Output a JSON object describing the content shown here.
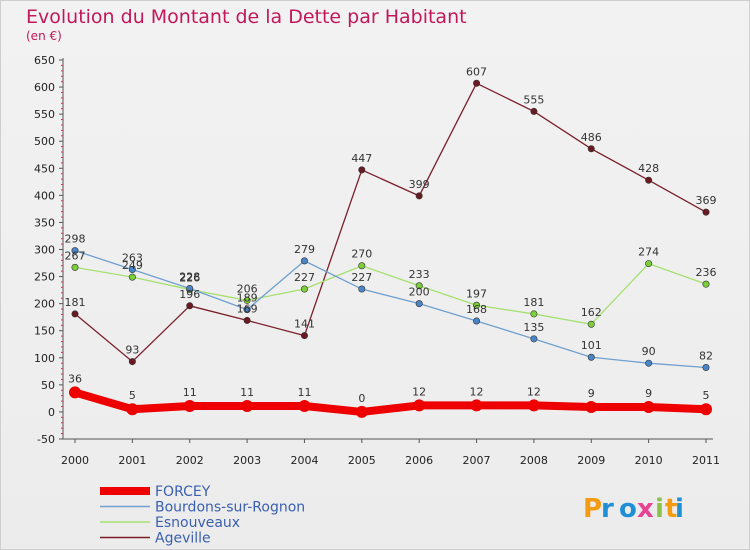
{
  "title": "Evolution du Montant de la Dette par Habitant",
  "subtitle": "(en €)",
  "logo": "Proxiti",
  "chart_data": {
    "type": "line",
    "x": [
      "2000",
      "2001",
      "2002",
      "2003",
      "2004",
      "2005",
      "2006",
      "2007",
      "2008",
      "2009",
      "2010",
      "2011"
    ],
    "ylim": [
      -50,
      650
    ],
    "yticks": [
      -50,
      0,
      50,
      100,
      150,
      200,
      250,
      300,
      350,
      400,
      450,
      500,
      550,
      600,
      650
    ],
    "grid": false,
    "legend": "bottom-left",
    "series": [
      {
        "name": "FORCEY",
        "color": "#ee0000",
        "marker": "#ee0000",
        "width": 8,
        "values": [
          36,
          5,
          11,
          11,
          11,
          0,
          12,
          12,
          12,
          9,
          9,
          5
        ],
        "labels": true
      },
      {
        "name": "Bourdons-sur-Rognon",
        "color": "#6fa0cf",
        "marker": "#4a86c5",
        "width": 1.3,
        "values": [
          298,
          263,
          228,
          189,
          279,
          227,
          200,
          168,
          135,
          101,
          90,
          82
        ],
        "labels": true
      },
      {
        "name": "Esnouveaux",
        "color": "#a6e070",
        "marker": "#7bd03a",
        "width": 1.3,
        "values": [
          267,
          249,
          226,
          206,
          227,
          270,
          233,
          197,
          181,
          162,
          274,
          236
        ],
        "labels": true
      },
      {
        "name": "Ageville",
        "color": "#7a1f28",
        "marker": "#6b1a22",
        "width": 1.3,
        "values": [
          181,
          93,
          196,
          169,
          141,
          447,
          399,
          607,
          555,
          486,
          428,
          369
        ],
        "labels": true
      }
    ]
  },
  "colors": {
    "title": "#c2185b",
    "legend_text": "#3a5fb0"
  }
}
